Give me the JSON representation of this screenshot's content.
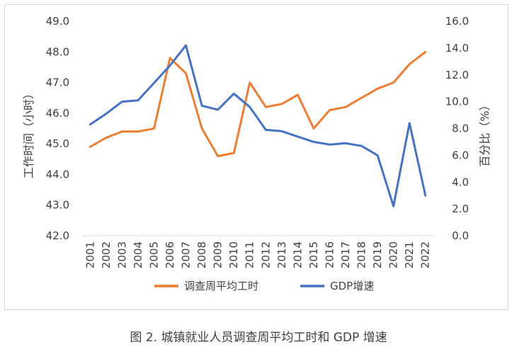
{
  "caption": "图 2. 城镇就业人员调查周平均工时和 GDP 增速",
  "chart_data": {
    "type": "line",
    "x": [
      "2001",
      "2002",
      "2003",
      "2004",
      "2005",
      "2006",
      "2007",
      "2008",
      "2009",
      "2010",
      "2011",
      "2012",
      "2013",
      "2014",
      "2015",
      "2016",
      "2017",
      "2018",
      "2019",
      "2020",
      "2021",
      "2022"
    ],
    "series": [
      {
        "name": "调查周平均工时",
        "axis": "left",
        "color": "#ED7D31",
        "values": [
          44.9,
          45.2,
          45.4,
          45.4,
          45.5,
          47.8,
          47.3,
          45.5,
          44.6,
          44.7,
          47.0,
          46.2,
          46.3,
          46.6,
          45.5,
          46.1,
          46.2,
          46.5,
          46.8,
          47.0,
          47.6,
          48.0
        ]
      },
      {
        "name": "GDP增速",
        "axis": "right",
        "color": "#4472C4",
        "values": [
          8.3,
          9.1,
          10.0,
          10.1,
          11.4,
          12.7,
          14.2,
          9.7,
          9.4,
          10.6,
          9.6,
          7.9,
          7.8,
          7.4,
          7.0,
          6.8,
          6.9,
          6.7,
          6.0,
          2.2,
          8.4,
          3.0
        ]
      }
    ],
    "ylabel_left": "工作时间（小时）",
    "ylabel_right": "百分比（%）",
    "ylim_left": [
      42.0,
      49.0
    ],
    "ylim_right": [
      0.0,
      16.0
    ],
    "yticks_left": [
      "42.0",
      "43.0",
      "44.0",
      "45.0",
      "46.0",
      "47.0",
      "48.0",
      "49.0"
    ],
    "yticks_right": [
      "0.0",
      "2.0",
      "4.0",
      "6.0",
      "8.0",
      "10.0",
      "12.0",
      "14.0",
      "16.0"
    ],
    "grid": false,
    "legend_position": "bottom"
  }
}
